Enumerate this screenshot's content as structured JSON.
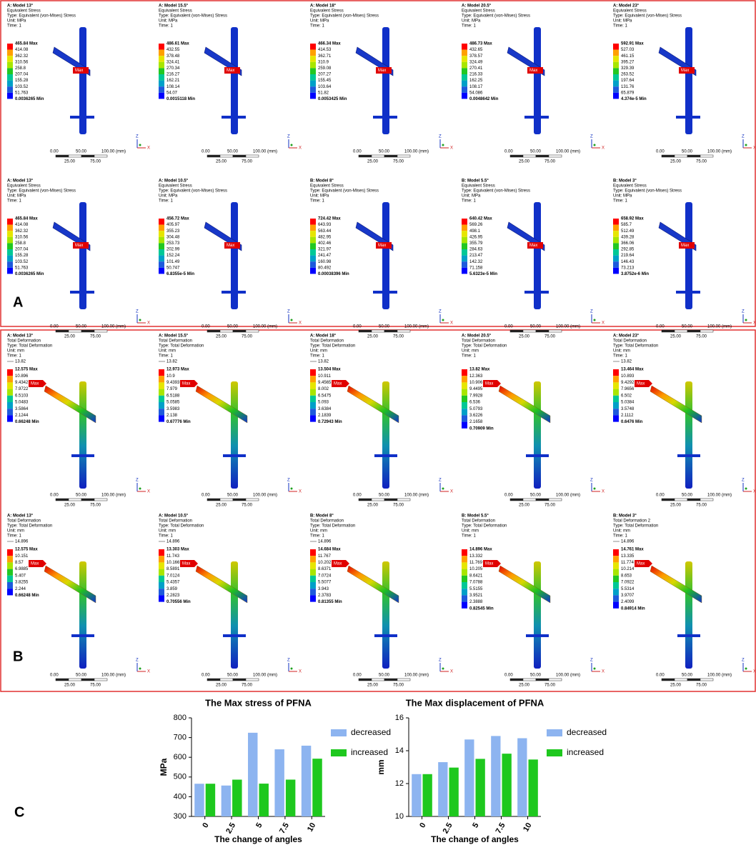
{
  "panel_labels": [
    "A",
    "B",
    "C"
  ],
  "scale_bar": [
    "0.00",
    "50.00",
    "100.00 (mm)",
    "25.00",
    "75.00"
  ],
  "triad": [
    "Z",
    "X"
  ],
  "max_tag": "Max",
  "stress": [
    {
      "title": [
        "A: Model 13°",
        "Equivalent Stress",
        "Type: Equivalent (von-Mises) Stress",
        "Unit: MPa",
        "Time: 1"
      ],
      "legend": [
        "465.84 Max",
        "414.08",
        "362.32",
        "310.56",
        "258.8",
        "207.04",
        "155.28",
        "103.52",
        "51.763",
        "0.0036265 Min"
      ]
    },
    {
      "title": [
        "A: Model 15.5°",
        "Equivalent Stress",
        "Type: Equivalent (von-Mises) Stress",
        "Unit: MPa",
        "Time: 1"
      ],
      "legend": [
        "486.61 Max",
        "432.55",
        "378.48",
        "324.41",
        "270.34",
        "216.27",
        "162.21",
        "108.14",
        "54.07",
        "0.0015118 Min"
      ]
    },
    {
      "title": [
        "A: Model 18°",
        "Equivalent Stress",
        "Type: Equivalent (von-Mises) Stress",
        "Unit: MPa",
        "Time: 1"
      ],
      "legend": [
        "466.34 Max",
        "414.53",
        "362.71",
        "310.9",
        "259.08",
        "207.27",
        "155.45",
        "103.64",
        "51.82",
        "0.0053425 Min"
      ]
    },
    {
      "title": [
        "A: Model 20.5°",
        "Equivalent Stress",
        "Type: Equivalent (von-Mises) Stress",
        "Unit: MPa",
        "Time: 1"
      ],
      "legend": [
        "486.73 Max",
        "432.65",
        "378.57",
        "324.49",
        "270.41",
        "216.33",
        "162.25",
        "108.17",
        "54.086",
        "0.0048642 Min"
      ]
    },
    {
      "title": [
        "A: Model 23°",
        "Equivalent Stress",
        "Type: Equivalent (von-Mises) Stress",
        "Unit: MPa",
        "Time: 1"
      ],
      "legend": [
        "592.91 Max",
        "527.03",
        "461.15",
        "395.27",
        "329.39",
        "263.52",
        "197.64",
        "131.76",
        "65.879",
        "4.374e-5 Min"
      ]
    },
    {
      "title": [
        "A: Model 13°",
        "Equivalent Stress",
        "Type: Equivalent (von-Mises) Stress",
        "Unit: MPa",
        "Time: 1"
      ],
      "legend": [
        "465.84 Max",
        "414.08",
        "362.32",
        "310.56",
        "258.8",
        "207.04",
        "155.28",
        "103.52",
        "51.763",
        "0.0036265 Min"
      ]
    },
    {
      "title": [
        "A: Model 10.5°",
        "Equivalent Stress",
        "Type: Equivalent (von-Mises) Stress",
        "Unit: MPa",
        "Time: 1"
      ],
      "legend": [
        "456.72 Max",
        "405.97",
        "355.23",
        "304.48",
        "253.73",
        "202.99",
        "152.24",
        "101.49",
        "50.747",
        "6.8355e-5 Min"
      ]
    },
    {
      "title": [
        "B: Model 8°",
        "Equivalent Stress",
        "Type: Equivalent (von-Mises) Stress",
        "Unit: MPa",
        "Time: 1"
      ],
      "legend": [
        "724.42 Max",
        "643.93",
        "563.44",
        "482.95",
        "402.46",
        "321.97",
        "241.47",
        "160.98",
        "80.492",
        "0.00038396 Min"
      ]
    },
    {
      "title": [
        "B: Model 5.5°",
        "Equivalent Stress",
        "Type: Equivalent (von-Mises) Stress",
        "Unit: MPa",
        "Time: 1"
      ],
      "legend": [
        "640.42 Max",
        "569.26",
        "498.1",
        "426.95",
        "355.79",
        "284.63",
        "213.47",
        "142.32",
        "71.158",
        "5.6323e-5 Min"
      ]
    },
    {
      "title": [
        "B: Model 3°",
        "Equivalent Stress",
        "Type: Equivalent (von-Mises) Stress",
        "Unit: MPa",
        "Time: 1"
      ],
      "legend": [
        "658.92 Max",
        "585.7",
        "512.49",
        "439.28",
        "366.06",
        "292.85",
        "219.64",
        "146.43",
        "73.213",
        "3.8752e-6 Min"
      ]
    }
  ],
  "deformation": [
    {
      "title": [
        "A: Model 13°",
        "Total Deformation",
        "Type: Total Deformation",
        "Unit: mm",
        "Time: 1"
      ],
      "marker": "13.82",
      "legend": [
        "12.575 Max",
        "10.896",
        "9.4342",
        "7.9722",
        "6.5103",
        "5.0483",
        "3.5864",
        "2.1244",
        "0.66248 Min"
      ]
    },
    {
      "title": [
        "A: Model 15.5°",
        "Total Deformation",
        "Type: Total Deformation",
        "Unit: mm",
        "Time: 1"
      ],
      "marker": "13.82",
      "legend": [
        "12.973 Max",
        "10.9",
        "9.4393",
        "7.979",
        "6.5188",
        "5.0585",
        "3.5983",
        "2.138",
        "0.67776 Min"
      ]
    },
    {
      "title": [
        "A: Model 18°",
        "Total Deformation",
        "Type: Total Deformation",
        "Unit: mm",
        "Time: 1"
      ],
      "marker": "13.82",
      "legend": [
        "13.504 Max",
        "10.911",
        "9.4565",
        "8.002",
        "6.5475",
        "5.093",
        "3.6384",
        "2.1839",
        "0.72943 Min"
      ]
    },
    {
      "title": [
        "A: Model 20.5°",
        "Total Deformation",
        "Type: Total Deformation",
        "Unit: mm",
        "Time: 1"
      ],
      "legend": [
        "13.82 Max",
        "12.363",
        "10.906",
        "9.4495",
        "7.9928",
        "6.536",
        "5.0793",
        "3.6226",
        "2.1658",
        "0.70909 Min"
      ]
    },
    {
      "title": [
        "A: Model 23°",
        "Total Deformation",
        "Type: Total Deformation",
        "Unit: mm",
        "Time: 1"
      ],
      "marker": "13.82",
      "legend": [
        "13.464 Max",
        "10.893",
        "9.4292",
        "7.9656",
        "6.502",
        "5.0384",
        "3.5748",
        "2.1112",
        "0.6476 Min"
      ]
    },
    {
      "title": [
        "A: Model 13°",
        "Total Deformation",
        "Type: Total Deformation",
        "Unit: mm",
        "Time: 1"
      ],
      "marker": "14.896",
      "legend": [
        "12.575 Max",
        "10.151",
        "8.57",
        "6.9885",
        "5.407",
        "3.8255",
        "2.244",
        "0.66248 Min"
      ]
    },
    {
      "title": [
        "A: Model 10.5°",
        "Total Deformation",
        "Type: Total Deformation",
        "Unit: mm",
        "Time: 1"
      ],
      "marker": "14.896",
      "legend": [
        "13.303 Max",
        "11.743",
        "10.166",
        "8.5891",
        "7.0124",
        "5.4357",
        "3.859",
        "2.2823",
        "0.70556 Min"
      ]
    },
    {
      "title": [
        "B: Model 8°",
        "Total Deformation",
        "Type: Total Deformation",
        "Unit: mm",
        "Time: 1"
      ],
      "marker": "14.896",
      "legend": [
        "14.684 Max",
        "11.767",
        "10.202",
        "8.6371",
        "7.0724",
        "5.5077",
        "3.943",
        "2.3783",
        "0.81355 Min"
      ]
    },
    {
      "title": [
        "B: Model 5.5°",
        "Total Deformation",
        "Type: Total Deformation",
        "Unit: mm",
        "Time: 1"
      ],
      "legend": [
        "14.896 Max",
        "13.332",
        "11.769",
        "10.205",
        "8.6421",
        "7.0788",
        "5.5155",
        "3.9521",
        "2.3888",
        "0.82545 Min"
      ]
    },
    {
      "title": [
        "B: Model 3°",
        "Total Deformation 2",
        "Type: Total Deformation",
        "Unit: mm",
        "Time: 1"
      ],
      "marker": "14.896",
      "legend": [
        "14.761 Max",
        "13.335",
        "11.774",
        "10.214",
        "8.653",
        "7.0922",
        "5.5314",
        "3.9707",
        "2.4099",
        "0.84914 Min"
      ]
    }
  ],
  "chart_data": [
    {
      "type": "bar",
      "title": "The Max stress of PFNA",
      "x_label": "The change of angles",
      "y_label": "MPa",
      "categories": [
        "0",
        "2.5",
        "5",
        "7.5",
        "10"
      ],
      "series": [
        {
          "name": "decreased",
          "color": "#8db4f0",
          "values": [
            465.84,
            456.72,
            724.42,
            640.42,
            658.92
          ]
        },
        {
          "name": "increased",
          "color": "#1ec81e",
          "values": [
            465.84,
            486.61,
            466.34,
            486.73,
            592.91
          ]
        }
      ],
      "ylim": [
        300,
        800
      ],
      "yticks": [
        300,
        400,
        500,
        600,
        700,
        800
      ],
      "legend": "right"
    },
    {
      "type": "bar",
      "title": "The Max displacement of PFNA",
      "x_label": "The change of angles",
      "y_label": "mm",
      "categories": [
        "0",
        "2.5",
        "5",
        "7.5",
        "10"
      ],
      "series": [
        {
          "name": "decreased",
          "color": "#8db4f0",
          "values": [
            12.575,
            13.303,
            14.684,
            14.896,
            14.761
          ]
        },
        {
          "name": "increased",
          "color": "#1ec81e",
          "values": [
            12.575,
            12.973,
            13.504,
            13.82,
            13.464
          ]
        }
      ],
      "ylim": [
        10,
        16
      ],
      "yticks": [
        10,
        12,
        14,
        16
      ],
      "legend": "right"
    }
  ]
}
